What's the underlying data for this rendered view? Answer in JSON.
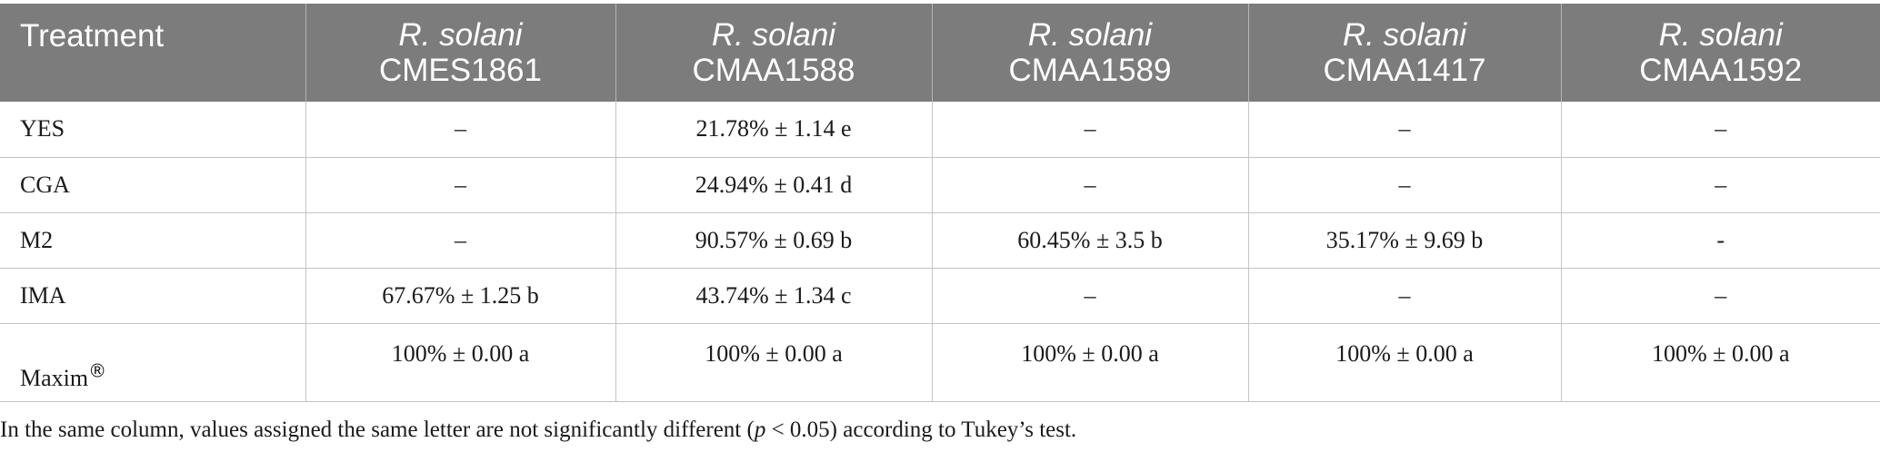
{
  "table": {
    "header": {
      "treatment_label": "Treatment",
      "columns": [
        {
          "species": "R. solani",
          "strain": "CMES1861"
        },
        {
          "species": "R. solani",
          "strain": "CMAA1588"
        },
        {
          "species": "R. solani",
          "strain": "CMAA1589"
        },
        {
          "species": "R. solani",
          "strain": "CMAA1417"
        },
        {
          "species": "R. solani",
          "strain": "CMAA1592"
        }
      ]
    },
    "rows": [
      {
        "treatment": "YES",
        "values": [
          "–",
          "21.78% ± 1.14 e",
          "–",
          "–",
          "–"
        ]
      },
      {
        "treatment": "CGA",
        "values": [
          "–",
          "24.94% ± 0.41 d",
          "–",
          "–",
          "–"
        ]
      },
      {
        "treatment": "M2",
        "values": [
          "–",
          "90.57% ± 0.69 b",
          "60.45% ± 3.5 b",
          "35.17% ± 9.69 b",
          "-"
        ]
      },
      {
        "treatment": "IMA",
        "values": [
          "67.67% ± 1.25 b",
          "43.74% ± 1.34 c",
          "–",
          "–",
          "–"
        ]
      },
      {
        "treatment": "Maxim",
        "treatment_mark": "®",
        "values": [
          "100% ± 0.00 a",
          "100% ± 0.00 a",
          "100% ± 0.00 a",
          "100% ± 0.00 a",
          "100% ± 0.00 a"
        ]
      }
    ]
  },
  "footnote": {
    "before": "In the same column, values assigned the same letter are not significantly different (",
    "p_symbol": "p",
    "after": " < 0.05) according to Tukey’s test."
  }
}
